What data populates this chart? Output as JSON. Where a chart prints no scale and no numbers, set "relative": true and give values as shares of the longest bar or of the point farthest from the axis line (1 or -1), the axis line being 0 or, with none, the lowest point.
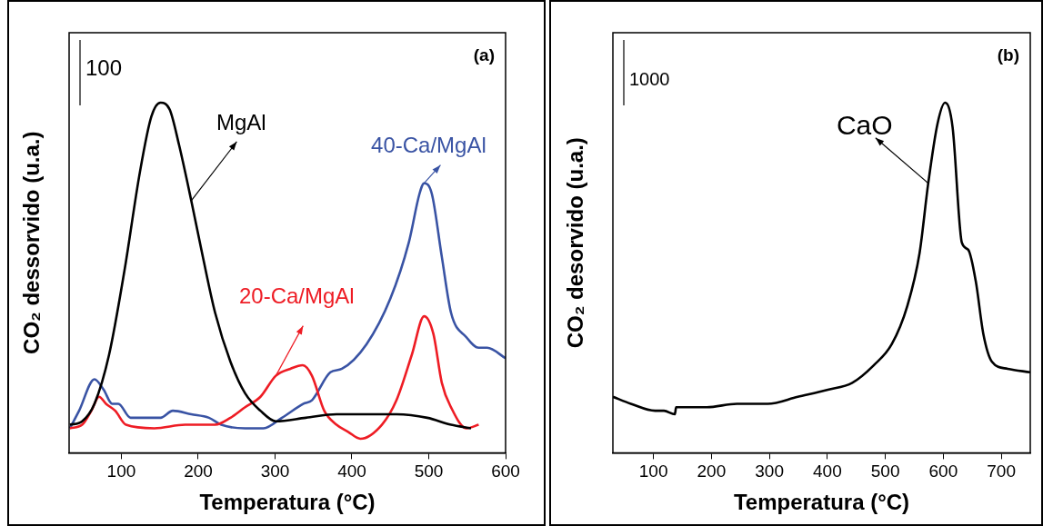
{
  "chart_data": [
    {
      "type": "line",
      "relative": true,
      "xlabel": "Temperatura (°C)",
      "ylabel": "CO₂ dessorvido (u.a.)",
      "xlim": [
        32,
        600
      ],
      "xticks": [
        100,
        200,
        300,
        400,
        500,
        600
      ],
      "legend": false,
      "grid": false,
      "marker": "none",
      "line_style": "solid",
      "annotations": [
        "(a)",
        "100"
      ],
      "series": [
        {
          "name": "MgAl",
          "color": "#000000",
          "x": [
            33,
            49,
            65,
            84,
            104,
            124,
            139,
            151,
            163,
            175,
            191,
            206,
            222,
            242,
            261,
            281,
            301,
            340,
            380,
            419,
            458,
            498,
            529,
            555
          ],
          "values": [
            0.08,
            0.09,
            0.14,
            0.28,
            0.52,
            0.8,
            0.96,
            1.0,
            0.98,
            0.88,
            0.72,
            0.56,
            0.4,
            0.26,
            0.17,
            0.12,
            0.09,
            0.1,
            0.11,
            0.11,
            0.11,
            0.1,
            0.08,
            0.07
          ]
        },
        {
          "name": "20-Ca/MgAl",
          "color": "#ee1c24",
          "x": [
            33,
            49,
            61,
            71,
            80,
            92,
            106,
            143,
            183,
            222,
            242,
            261,
            281,
            301,
            320,
            336,
            348,
            364,
            380,
            395,
            411,
            439,
            458,
            478,
            494,
            506,
            517,
            529,
            549,
            565
          ],
          "values": [
            0.07,
            0.08,
            0.12,
            0.16,
            0.14,
            0.12,
            0.08,
            0.07,
            0.08,
            0.08,
            0.1,
            0.13,
            0.16,
            0.22,
            0.24,
            0.25,
            0.22,
            0.12,
            0.08,
            0.06,
            0.04,
            0.08,
            0.15,
            0.28,
            0.39,
            0.34,
            0.2,
            0.13,
            0.07,
            0.08
          ]
        },
        {
          "name": "40-Ca/MgAl",
          "color": "#3953a4",
          "x": [
            33,
            45,
            65,
            77,
            88,
            96,
            112,
            151,
            167,
            191,
            214,
            230,
            261,
            285,
            309,
            337,
            348,
            372,
            387,
            419,
            450,
            474,
            488,
            494,
            504,
            517,
            529,
            549,
            565,
            576,
            600
          ],
          "values": [
            0.07,
            0.12,
            0.21,
            0.18,
            0.14,
            0.14,
            0.1,
            0.1,
            0.12,
            0.11,
            0.1,
            0.08,
            0.07,
            0.07,
            0.1,
            0.14,
            0.15,
            0.23,
            0.24,
            0.31,
            0.44,
            0.6,
            0.74,
            0.77,
            0.74,
            0.56,
            0.4,
            0.33,
            0.3,
            0.3,
            0.27
          ]
        }
      ]
    },
    {
      "type": "line",
      "relative": true,
      "xlabel": "Temperatura (°C)",
      "ylabel": "CO₂ desorvido (u.a.)",
      "xlim": [
        30,
        750
      ],
      "xticks": [
        100,
        200,
        300,
        400,
        500,
        600,
        700
      ],
      "legend": false,
      "grid": false,
      "marker": "none",
      "line_style": "solid",
      "annotations": [
        "(b)",
        "1000"
      ],
      "series": [
        {
          "name": "CaO",
          "color": "#000000",
          "x": [
            30,
            61,
            103,
            118,
            137,
            139,
            192,
            244,
            297,
            349,
            401,
            443,
            480,
            511,
            538,
            559,
            574,
            590,
            603,
            616,
            632,
            643,
            656,
            669,
            684,
            711,
            750
          ],
          "values": [
            0.16,
            0.14,
            0.12,
            0.12,
            0.11,
            0.13,
            0.13,
            0.14,
            0.14,
            0.16,
            0.18,
            0.2,
            0.25,
            0.31,
            0.42,
            0.57,
            0.77,
            0.94,
            1.0,
            0.93,
            0.6,
            0.58,
            0.49,
            0.34,
            0.26,
            0.24,
            0.23
          ]
        }
      ]
    }
  ]
}
